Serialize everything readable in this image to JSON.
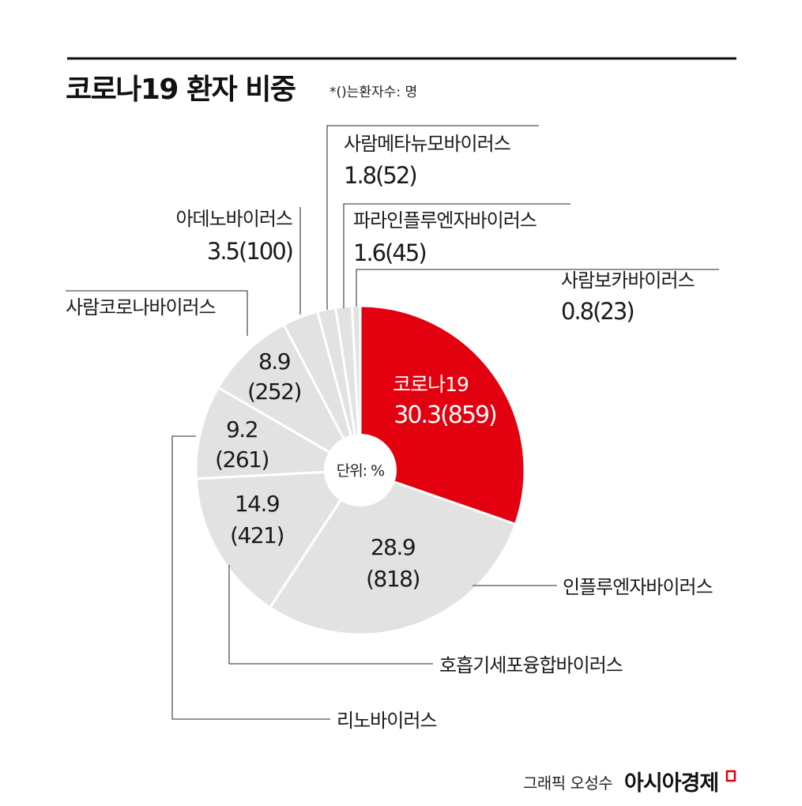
{
  "title": "코로나19 환자 비중",
  "note": "*()는환자수: 명",
  "unit_label": "단위: %",
  "credit": "그래픽 오성수",
  "brand": "아시아경제",
  "colors": {
    "highlight": "#e3000f",
    "slice": "#e2e2e2",
    "rule": "#111111"
  },
  "chart_data": {
    "type": "pie",
    "categories": [
      "코로나19",
      "인플루엔자바이러스",
      "호흡기세포융합바이러스",
      "리노바이러스",
      "사람코로나바이러스",
      "아데노바이러스",
      "사람메타뉴모바이러스",
      "파라인플루엔자바이러스",
      "사람보카바이러스"
    ],
    "values": [
      30.3,
      28.9,
      14.9,
      9.2,
      8.9,
      3.5,
      1.8,
      1.6,
      0.8
    ],
    "counts": [
      859,
      818,
      421,
      261,
      252,
      100,
      52,
      45,
      23
    ],
    "value_labels": [
      "30.3(859)",
      "28.9",
      "14.9",
      "9.2",
      "8.9",
      "3.5(100)",
      "1.8(52)",
      "1.6(45)",
      "0.8(23)"
    ],
    "count_labels": [
      "",
      "(818)",
      "(421)",
      "(261)",
      "(252)",
      "",
      "",
      "",
      ""
    ],
    "highlight_index": 0
  }
}
